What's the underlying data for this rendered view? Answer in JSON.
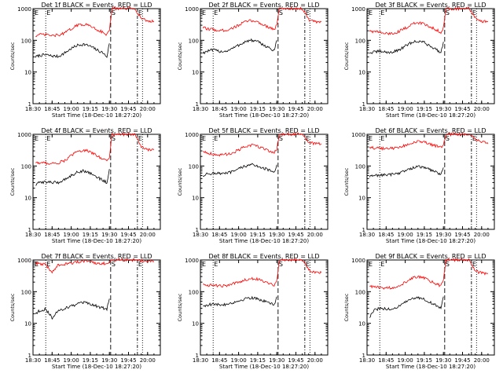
{
  "colors": {
    "events": "#000000",
    "lld": "#ff0000",
    "axis": "#000000",
    "background": "#ffffff"
  },
  "common": {
    "ylabel": "Counts/sec",
    "xlabel": "Start Time (18-Dec-10 18:27:20)",
    "xticks": [
      "18:30",
      "18:45",
      "19:00",
      "19:15",
      "19:30",
      "19:45",
      "20:00"
    ],
    "yticks": [
      "1",
      "10",
      "100",
      "1000"
    ],
    "marker_labels": [
      "E",
      "S",
      "E"
    ]
  },
  "chart_data": [
    {
      "type": "line",
      "title": "Det 1f BLACK = Events, RED = LLD",
      "xlabel": "Start Time (18-Dec-10 18:27:20)",
      "ylabel": "Counts/sec",
      "ylim": [
        1,
        1000
      ],
      "yscale": "log",
      "series": [
        {
          "name": "Events",
          "color": "#000000",
          "x": [
            "18:32",
            "18:35",
            "18:40",
            "18:45",
            "18:50",
            "18:55",
            "19:00",
            "19:05",
            "19:10",
            "19:15",
            "19:20",
            "19:25",
            "19:28",
            "19:30"
          ],
          "values": [
            30,
            33,
            35,
            32,
            31,
            40,
            55,
            70,
            75,
            65,
            50,
            40,
            30,
            80
          ]
        },
        {
          "name": "LLD",
          "color": "#ff0000",
          "x": [
            "18:32",
            "18:35",
            "18:40",
            "18:45",
            "18:50",
            "18:55",
            "19:00",
            "19:05",
            "19:10",
            "19:15",
            "19:20",
            "19:25",
            "19:28",
            "19:30",
            "19:32",
            "19:50",
            "19:55",
            "20:00",
            "20:05"
          ],
          "values": [
            140,
            150,
            150,
            140,
            145,
            170,
            230,
            300,
            320,
            290,
            220,
            180,
            150,
            200,
            1000,
            1000,
            500,
            400,
            400
          ]
        }
      ]
    },
    {
      "type": "line",
      "title": "Det 2f BLACK = Events, RED = LLD",
      "xlabel": "Start Time (18-Dec-10 18:27:20)",
      "ylabel": "Counts/sec",
      "ylim": [
        1,
        1000
      ],
      "yscale": "log",
      "series": [
        {
          "name": "Events",
          "color": "#000000",
          "x": [
            "18:32",
            "18:35",
            "18:40",
            "18:45",
            "18:50",
            "18:55",
            "19:00",
            "19:05",
            "19:10",
            "19:15",
            "19:20",
            "19:25",
            "19:28",
            "19:30"
          ],
          "values": [
            40,
            45,
            50,
            45,
            45,
            55,
            70,
            90,
            100,
            90,
            70,
            55,
            45,
            100
          ]
        },
        {
          "name": "LLD",
          "color": "#ff0000",
          "x": [
            "18:32",
            "18:35",
            "18:40",
            "18:45",
            "18:50",
            "18:55",
            "19:00",
            "19:05",
            "19:10",
            "19:15",
            "19:20",
            "19:25",
            "19:28",
            "19:30",
            "19:32",
            "19:50",
            "19:55",
            "20:00",
            "20:05"
          ],
          "values": [
            250,
            230,
            220,
            200,
            210,
            240,
            300,
            380,
            420,
            380,
            300,
            250,
            220,
            300,
            1000,
            1000,
            450,
            380,
            380
          ]
        }
      ]
    },
    {
      "type": "line",
      "title": "Det 3f BLACK = Events, RED = LLD",
      "xlabel": "Start Time (18-Dec-10 18:27:20)",
      "ylabel": "Counts/sec",
      "ylim": [
        1,
        1000
      ],
      "yscale": "log",
      "series": [
        {
          "name": "Events",
          "color": "#000000",
          "x": [
            "18:32",
            "18:35",
            "18:40",
            "18:45",
            "18:50",
            "18:55",
            "19:00",
            "19:05",
            "19:10",
            "19:15",
            "19:20",
            "19:25",
            "19:28",
            "19:30"
          ],
          "values": [
            40,
            42,
            45,
            42,
            42,
            50,
            65,
            85,
            95,
            85,
            65,
            50,
            40,
            90
          ]
        },
        {
          "name": "LLD",
          "color": "#ff0000",
          "x": [
            "18:32",
            "18:35",
            "18:40",
            "18:45",
            "18:50",
            "18:55",
            "19:00",
            "19:05",
            "19:10",
            "19:15",
            "19:20",
            "19:25",
            "19:28",
            "19:30",
            "19:32",
            "19:50",
            "19:55",
            "20:00",
            "20:05"
          ],
          "values": [
            200,
            190,
            180,
            160,
            165,
            190,
            240,
            320,
            360,
            330,
            260,
            210,
            180,
            250,
            1000,
            1000,
            500,
            400,
            400
          ]
        }
      ]
    },
    {
      "type": "line",
      "title": "Det 4f BLACK = Events, RED = LLD",
      "xlabel": "Start Time (18-Dec-10 18:27:20)",
      "ylabel": "Counts/sec",
      "ylim": [
        1,
        1000
      ],
      "yscale": "log",
      "series": [
        {
          "name": "Events",
          "color": "#000000",
          "x": [
            "18:32",
            "18:35",
            "18:40",
            "18:45",
            "18:50",
            "18:55",
            "19:00",
            "19:05",
            "19:10",
            "19:15",
            "19:20",
            "19:25",
            "19:28",
            "19:30"
          ],
          "values": [
            25,
            30,
            32,
            30,
            30,
            38,
            50,
            65,
            70,
            60,
            45,
            35,
            30,
            80
          ]
        },
        {
          "name": "LLD",
          "color": "#ff0000",
          "x": [
            "18:32",
            "18:35",
            "18:40",
            "18:45",
            "18:50",
            "18:55",
            "19:00",
            "19:05",
            "19:10",
            "19:15",
            "19:20",
            "19:25",
            "19:28",
            "19:30",
            "19:32",
            "19:50",
            "19:55",
            "20:00",
            "20:05"
          ],
          "values": [
            130,
            125,
            125,
            120,
            125,
            150,
            210,
            290,
            320,
            280,
            210,
            170,
            140,
            200,
            1000,
            1000,
            400,
            320,
            320
          ]
        }
      ]
    },
    {
      "type": "line",
      "title": "Det 5f BLACK = Events, RED = LLD",
      "xlabel": "Start Time (18-Dec-10 18:27:20)",
      "ylabel": "Counts/sec",
      "ylim": [
        1,
        1000
      ],
      "yscale": "log",
      "series": [
        {
          "name": "Events",
          "color": "#000000",
          "x": [
            "18:32",
            "18:35",
            "18:40",
            "18:45",
            "18:50",
            "18:55",
            "19:00",
            "19:05",
            "19:10",
            "19:15",
            "19:20",
            "19:25",
            "19:28",
            "19:30"
          ],
          "values": [
            50,
            55,
            60,
            58,
            58,
            65,
            80,
            100,
            110,
            100,
            85,
            70,
            60,
            110
          ]
        },
        {
          "name": "LLD",
          "color": "#ff0000",
          "x": [
            "18:32",
            "18:35",
            "18:40",
            "18:45",
            "18:50",
            "18:55",
            "19:00",
            "19:05",
            "19:10",
            "19:15",
            "19:20",
            "19:25",
            "19:28",
            "19:30",
            "19:32",
            "19:50",
            "19:55",
            "20:00",
            "20:05"
          ],
          "values": [
            300,
            260,
            240,
            220,
            230,
            260,
            320,
            400,
            450,
            420,
            350,
            290,
            260,
            350,
            1000,
            1000,
            550,
            500,
            500
          ]
        }
      ]
    },
    {
      "type": "line",
      "title": "Det 6f BLACK = Events, RED = LLD",
      "xlabel": "Start Time (18-Dec-10 18:27:20)",
      "ylabel": "Counts/sec",
      "ylim": [
        1,
        1000
      ],
      "yscale": "log",
      "series": [
        {
          "name": "Events",
          "color": "#000000",
          "x": [
            "18:32",
            "18:35",
            "18:40",
            "18:45",
            "18:50",
            "18:55",
            "19:00",
            "19:05",
            "19:10",
            "19:15",
            "19:20",
            "19:25",
            "19:28",
            "19:30"
          ],
          "values": [
            45,
            50,
            52,
            52,
            55,
            60,
            70,
            85,
            95,
            90,
            75,
            62,
            55,
            90
          ]
        },
        {
          "name": "LLD",
          "color": "#ff0000",
          "x": [
            "18:32",
            "18:35",
            "18:40",
            "18:45",
            "18:50",
            "18:55",
            "19:00",
            "19:05",
            "19:10",
            "19:15",
            "19:20",
            "19:25",
            "19:28",
            "19:30",
            "19:32",
            "19:50",
            "19:55",
            "20:00",
            "20:05"
          ],
          "values": [
            400,
            370,
            360,
            350,
            360,
            390,
            450,
            530,
            580,
            560,
            480,
            420,
            380,
            480,
            1000,
            1000,
            700,
            600,
            500
          ]
        }
      ]
    },
    {
      "type": "line",
      "title": "Det 7f BLACK = Events, RED = LLD",
      "xlabel": "Start Time (18-Dec-10 18:27:20)",
      "ylabel": "Counts/sec",
      "ylim": [
        1,
        1000
      ],
      "yscale": "log",
      "series": [
        {
          "name": "Events",
          "color": "#000000",
          "x": [
            "18:32",
            "18:35",
            "18:40",
            "18:45",
            "18:50",
            "18:55",
            "19:00",
            "19:05",
            "19:10",
            "19:15",
            "19:20",
            "19:25",
            "19:28",
            "19:30"
          ],
          "values": [
            20,
            25,
            28,
            15,
            25,
            30,
            35,
            40,
            45,
            40,
            35,
            30,
            28,
            60
          ]
        },
        {
          "name": "LLD",
          "color": "#ff0000",
          "x": [
            "18:32",
            "18:35",
            "18:40",
            "18:45",
            "18:50",
            "18:55",
            "19:00",
            "19:05",
            "19:10",
            "19:15",
            "19:20",
            "19:25",
            "19:28",
            "19:30",
            "19:32",
            "19:50",
            "19:55",
            "20:00",
            "20:05"
          ],
          "values": [
            800,
            750,
            700,
            400,
            700,
            750,
            800,
            850,
            900,
            850,
            800,
            780,
            750,
            850,
            1000,
            1000,
            950,
            900,
            900
          ]
        }
      ]
    },
    {
      "type": "line",
      "title": "Det 8f BLACK = Events, RED = LLD",
      "xlabel": "Start Time (18-Dec-10 18:27:20)",
      "ylabel": "Counts/sec",
      "ylim": [
        1,
        1000
      ],
      "yscale": "log",
      "series": [
        {
          "name": "Events",
          "color": "#000000",
          "x": [
            "18:32",
            "18:35",
            "18:40",
            "18:45",
            "18:50",
            "18:55",
            "19:00",
            "19:05",
            "19:10",
            "19:15",
            "19:20",
            "19:25",
            "19:28",
            "19:30"
          ],
          "values": [
            35,
            38,
            40,
            38,
            40,
            45,
            50,
            60,
            65,
            60,
            50,
            42,
            38,
            70
          ]
        },
        {
          "name": "LLD",
          "color": "#ff0000",
          "x": [
            "18:32",
            "18:35",
            "18:40",
            "18:45",
            "18:50",
            "18:55",
            "19:00",
            "19:05",
            "19:10",
            "19:15",
            "19:20",
            "19:25",
            "19:28",
            "19:30",
            "19:32",
            "19:50",
            "19:55",
            "20:00",
            "20:05"
          ],
          "values": [
            170,
            160,
            160,
            150,
            155,
            170,
            200,
            240,
            260,
            250,
            210,
            180,
            160,
            220,
            1000,
            1000,
            500,
            400,
            400
          ]
        }
      ]
    },
    {
      "type": "line",
      "title": "Det 9f BLACK = Events, RED = LLD",
      "xlabel": "Start Time (18-Dec-10 18:27:20)",
      "ylabel": "Counts/sec",
      "ylim": [
        1,
        1000
      ],
      "yscale": "log",
      "series": [
        {
          "name": "Events",
          "color": "#000000",
          "x": [
            "18:32",
            "18:35",
            "18:40",
            "18:45",
            "18:50",
            "18:55",
            "19:00",
            "19:05",
            "19:10",
            "19:15",
            "19:20",
            "19:25",
            "19:28",
            "19:30"
          ],
          "values": [
            15,
            25,
            30,
            28,
            28,
            35,
            45,
            60,
            65,
            58,
            45,
            35,
            30,
            70
          ]
        },
        {
          "name": "LLD",
          "color": "#ff0000",
          "x": [
            "18:32",
            "18:35",
            "18:40",
            "18:45",
            "18:50",
            "18:55",
            "19:00",
            "19:05",
            "19:10",
            "19:15",
            "19:20",
            "19:25",
            "19:28",
            "19:30",
            "19:32",
            "19:50",
            "19:55",
            "20:00",
            "20:05"
          ],
          "values": [
            150,
            140,
            135,
            130,
            135,
            155,
            200,
            270,
            300,
            270,
            210,
            170,
            150,
            220,
            1000,
            1000,
            450,
            380,
            380
          ]
        }
      ]
    }
  ]
}
